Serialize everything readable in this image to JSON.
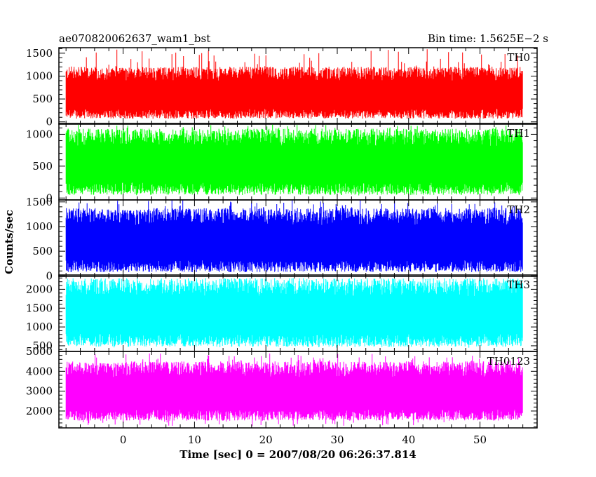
{
  "header": {
    "left_title": "ae070820062637_wam1_bst",
    "right_title": "Bin time: 1.5625E−2 s"
  },
  "chart_data": {
    "type": "line",
    "title": "ae070820062637_wam1_bst",
    "subtitle": "Bin time: 1.5625E−2 s",
    "xlabel": "Time [sec] 0 = 2007/08/20 06:26:37.814",
    "ylabel": "Counts/sec",
    "xlim": [
      -9,
      58
    ],
    "xticks": [
      0,
      10,
      20,
      30,
      40,
      50
    ],
    "x_range_data": [
      -8,
      56
    ],
    "grid": false,
    "legend": "none",
    "panels": [
      {
        "name": "TH0",
        "color": "#ff0000",
        "ylim": [
          -50,
          1620
        ],
        "yticks": [
          0,
          500,
          1000,
          1500
        ],
        "typical_range": [
          180,
          1050
        ],
        "peak": 1600,
        "trough": 80
      },
      {
        "name": "TH1",
        "color": "#00ff00",
        "ylim": [
          -30,
          1170
        ],
        "yticks": [
          0,
          500,
          1000
        ],
        "typical_range": [
          150,
          950
        ],
        "peak": 1150,
        "trough": 40
      },
      {
        "name": "TH2",
        "color": "#0000ff",
        "ylim": [
          -10,
          1540
        ],
        "yticks": [
          0,
          500,
          1000,
          1500
        ],
        "typical_range": [
          200,
          1200
        ],
        "peak": 1540,
        "trough": 80
      },
      {
        "name": "TH3",
        "color": "#00ffff",
        "ylim": [
          350,
          2380
        ],
        "yticks": [
          500,
          1000,
          1500,
          2000
        ],
        "typical_range": [
          650,
          2050
        ],
        "peak": 2300,
        "trough": 450
      },
      {
        "name": "TH0123",
        "color": "#ff00ff",
        "ylim": [
          1150,
          5000
        ],
        "yticks": [
          2000,
          3000,
          4000,
          5000
        ],
        "typical_range": [
          1800,
          4100
        ],
        "peak": 4900,
        "trough": 1250
      }
    ]
  }
}
